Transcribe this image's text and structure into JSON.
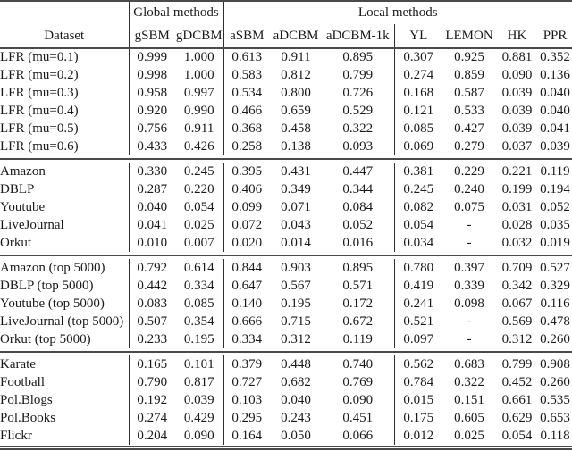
{
  "table": {
    "group_header": {
      "global": "Global methods",
      "local": "Local methods"
    },
    "columns": [
      "Dataset",
      "gSBM",
      "gDCBM",
      "aSBM",
      "aDCBM",
      "aDCBM-1k",
      "YL",
      "LEMON",
      "HK",
      "PPR"
    ],
    "sections": [
      {
        "rows": [
          {
            "dataset": "LFR (mu=0.1)",
            "values": [
              "0.999",
              "1.000",
              "0.613",
              "0.911",
              "0.895",
              "0.307",
              "0.925",
              "0.881",
              "0.352"
            ],
            "bold": [
              1
            ]
          },
          {
            "dataset": "LFR (mu=0.2)",
            "values": [
              "0.998",
              "1.000",
              "0.583",
              "0.812",
              "0.799",
              "0.274",
              "0.859",
              "0.090",
              "0.136"
            ],
            "bold": [
              1
            ]
          },
          {
            "dataset": "LFR (mu=0.3)",
            "values": [
              "0.958",
              "0.997",
              "0.534",
              "0.800",
              "0.726",
              "0.168",
              "0.587",
              "0.039",
              "0.040"
            ],
            "bold": [
              1
            ]
          },
          {
            "dataset": "LFR (mu=0.4)",
            "values": [
              "0.920",
              "0.990",
              "0.466",
              "0.659",
              "0.529",
              "0.121",
              "0.533",
              "0.039",
              "0.040"
            ],
            "bold": [
              1
            ]
          },
          {
            "dataset": "LFR (mu=0.5)",
            "values": [
              "0.756",
              "0.911",
              "0.368",
              "0.458",
              "0.322",
              "0.085",
              "0.427",
              "0.039",
              "0.041"
            ],
            "bold": [
              1
            ]
          },
          {
            "dataset": "LFR (mu=0.6)",
            "values": [
              "0.433",
              "0.426",
              "0.258",
              "0.138",
              "0.093",
              "0.069",
              "0.279",
              "0.037",
              "0.039"
            ],
            "bold": [
              0,
              1
            ]
          }
        ]
      },
      {
        "rows": [
          {
            "dataset": "Amazon",
            "values": [
              "0.330",
              "0.245",
              "0.395",
              "0.431",
              "0.447",
              "0.381",
              "0.229",
              "0.221",
              "0.119"
            ],
            "bold": [
              3,
              4
            ]
          },
          {
            "dataset": "DBLP",
            "values": [
              "0.287",
              "0.220",
              "0.406",
              "0.349",
              "0.344",
              "0.245",
              "0.240",
              "0.199",
              "0.194"
            ],
            "bold": [
              2
            ]
          },
          {
            "dataset": "Youtube",
            "values": [
              "0.040",
              "0.054",
              "0.099",
              "0.071",
              "0.084",
              "0.082",
              "0.075",
              "0.031",
              "0.052"
            ],
            "bold": [
              2
            ]
          },
          {
            "dataset": "LiveJournal",
            "values": [
              "0.041",
              "0.025",
              "0.072",
              "0.043",
              "0.052",
              "0.054",
              "-",
              "0.028",
              "0.035"
            ],
            "bold": [
              2
            ]
          },
          {
            "dataset": "Orkut",
            "values": [
              "0.010",
              "0.007",
              "0.020",
              "0.014",
              "0.016",
              "0.034",
              "-",
              "0.032",
              "0.019"
            ],
            "bold": [
              5,
              7
            ]
          }
        ]
      },
      {
        "rows": [
          {
            "dataset": "Amazon (top 5000)",
            "values": [
              "0.792",
              "0.614",
              "0.844",
              "0.903",
              "0.895",
              "0.780",
              "0.397",
              "0.709",
              "0.527"
            ],
            "bold": [
              3,
              4
            ]
          },
          {
            "dataset": "DBLP (top 5000)",
            "values": [
              "0.442",
              "0.334",
              "0.647",
              "0.567",
              "0.571",
              "0.419",
              "0.339",
              "0.342",
              "0.329"
            ],
            "bold": [
              2
            ]
          },
          {
            "dataset": "Youtube (top 5000)",
            "values": [
              "0.083",
              "0.085",
              "0.140",
              "0.195",
              "0.172",
              "0.241",
              "0.098",
              "0.067",
              "0.116"
            ],
            "bold": [
              5
            ]
          },
          {
            "dataset": "LiveJournal (top 5000)",
            "values": [
              "0.507",
              "0.354",
              "0.666",
              "0.715",
              "0.672",
              "0.521",
              "-",
              "0.569",
              "0.478"
            ],
            "bold": [
              3
            ]
          },
          {
            "dataset": "Orkut (top 5000)",
            "values": [
              "0.233",
              "0.195",
              "0.334",
              "0.312",
              "0.119",
              "0.097",
              "-",
              "0.312",
              "0.260"
            ],
            "bold": [
              2,
              3,
              7
            ]
          }
        ]
      },
      {
        "rows": [
          {
            "dataset": "Karate",
            "values": [
              "0.165",
              "0.101",
              "0.379",
              "0.448",
              "0.740",
              "0.562",
              "0.683",
              "0.799",
              "0.908"
            ],
            "bold": [
              8
            ]
          },
          {
            "dataset": "Football",
            "values": [
              "0.790",
              "0.817",
              "0.727",
              "0.682",
              "0.769",
              "0.784",
              "0.322",
              "0.452",
              "0.260"
            ],
            "bold": [
              0,
              1,
              5
            ]
          },
          {
            "dataset": "Pol.Blogs",
            "values": [
              "0.192",
              "0.039",
              "0.103",
              "0.040",
              "0.090",
              "0.015",
              "0.151",
              "0.661",
              "0.535"
            ],
            "bold": [
              7
            ]
          },
          {
            "dataset": "Pol.Books",
            "values": [
              "0.274",
              "0.429",
              "0.295",
              "0.243",
              "0.451",
              "0.175",
              "0.605",
              "0.629",
              "0.653"
            ],
            "bold": [
              7,
              8
            ]
          },
          {
            "dataset": "Flickr",
            "values": [
              "0.204",
              "0.090",
              "0.164",
              "0.050",
              "0.066",
              "0.012",
              "0.025",
              "0.054",
              "0.118"
            ],
            "bold": [
              0
            ]
          }
        ]
      }
    ],
    "colors": {
      "text": "#1a1a1a",
      "rule": "#4a4a4a",
      "bar": "#2e2e2e",
      "background": "#ffffff"
    }
  }
}
